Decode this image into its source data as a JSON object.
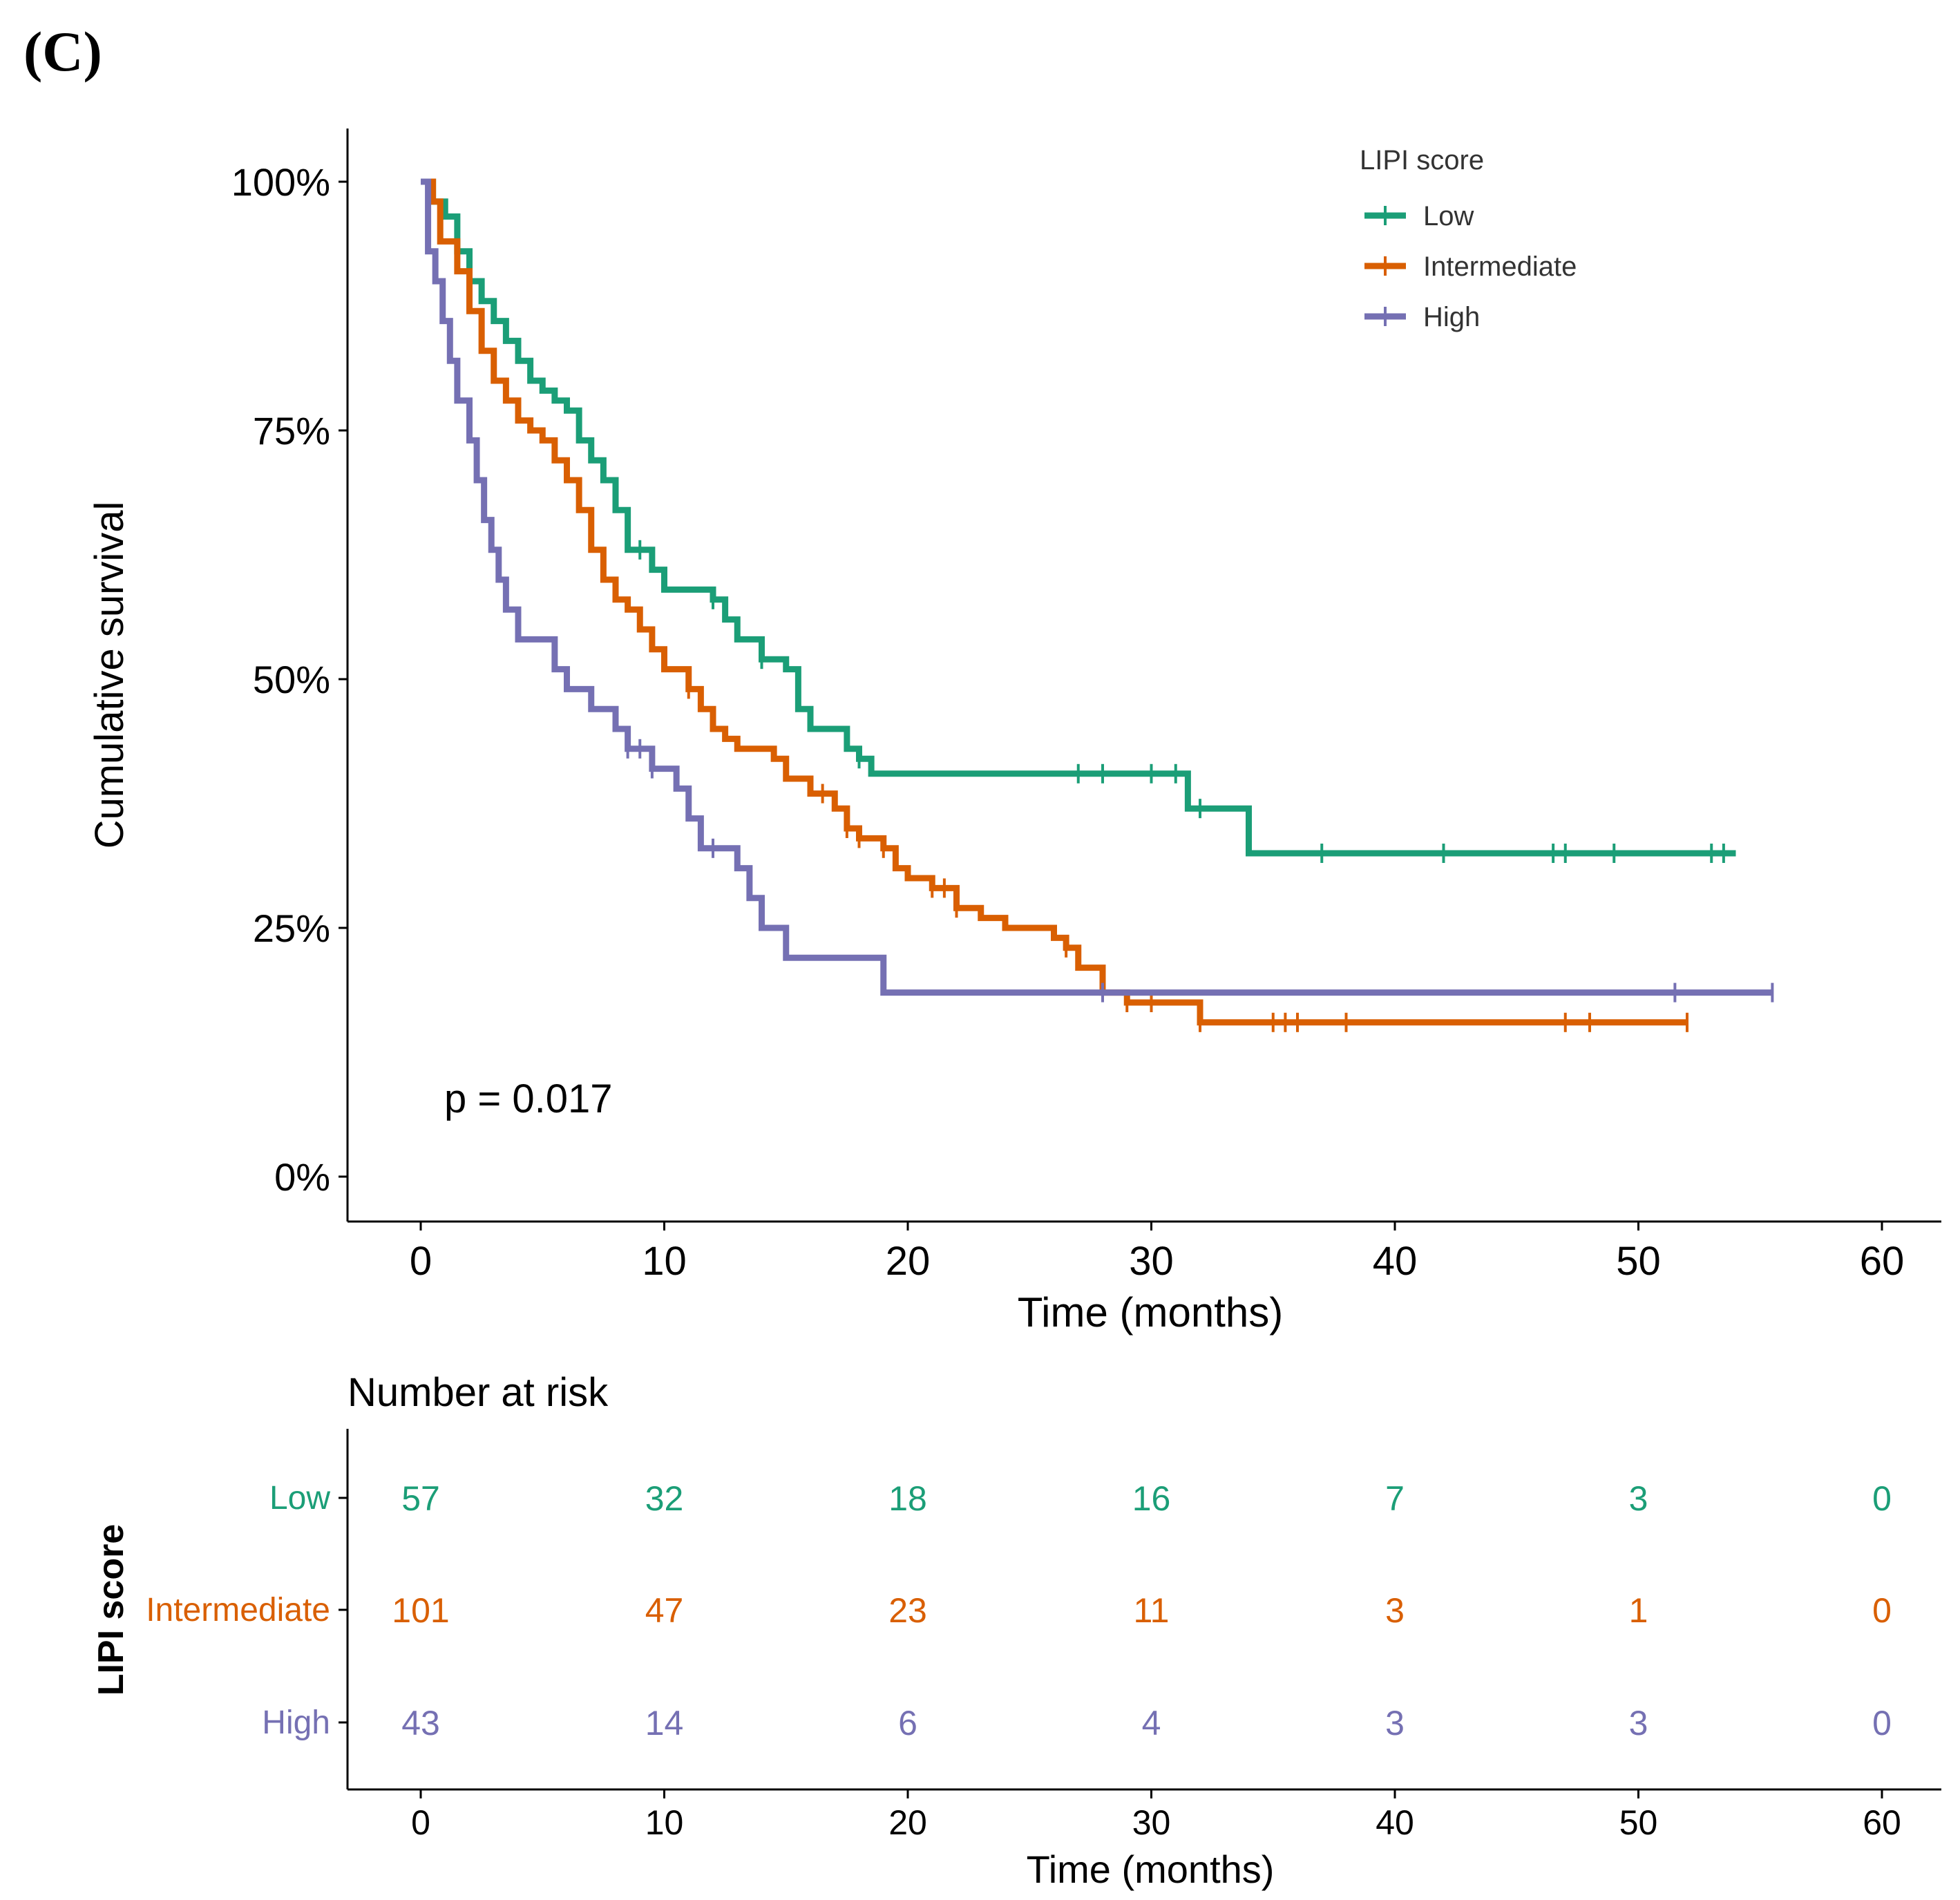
{
  "panel_label": "(C)",
  "chart_data": [
    {
      "type": "line",
      "subtype": "kaplan-meier-step",
      "title": "",
      "xlabel": "Time (months)",
      "ylabel": "Cumulative survival",
      "xlim": [
        -3,
        62
      ],
      "ylim": [
        -0.05,
        1.05
      ],
      "x_ticks": [
        0,
        10,
        20,
        30,
        40,
        50,
        60
      ],
      "y_ticks": [
        0,
        0.25,
        0.5,
        0.75,
        1.0
      ],
      "y_tick_labels": [
        "0%",
        "25%",
        "50%",
        "75%",
        "100%"
      ],
      "grid": false,
      "legend": {
        "title": "LIPI score",
        "placement": "top-right"
      },
      "annotation": "p = 0.017",
      "series": [
        {
          "name": "Low",
          "color": "#1b9e77",
          "points": [
            [
              0,
              1.0
            ],
            [
              0.5,
              0.98
            ],
            [
              1,
              0.965
            ],
            [
              1.5,
              0.93
            ],
            [
              2,
              0.9
            ],
            [
              2.5,
              0.88
            ],
            [
              3,
              0.86
            ],
            [
              3.5,
              0.84
            ],
            [
              4,
              0.82
            ],
            [
              4.5,
              0.8
            ],
            [
              5,
              0.79
            ],
            [
              5.5,
              0.78
            ],
            [
              6,
              0.77
            ],
            [
              6.5,
              0.74
            ],
            [
              7,
              0.72
            ],
            [
              7.5,
              0.7
            ],
            [
              8,
              0.67
            ],
            [
              8.5,
              0.63
            ],
            [
              9.5,
              0.61
            ],
            [
              10,
              0.59
            ],
            [
              12,
              0.58
            ],
            [
              12.5,
              0.56
            ],
            [
              13,
              0.54
            ],
            [
              14,
              0.52
            ],
            [
              15,
              0.51
            ],
            [
              15.5,
              0.47
            ],
            [
              16,
              0.45
            ],
            [
              17.5,
              0.43
            ],
            [
              18,
              0.42
            ],
            [
              18.5,
              0.405
            ],
            [
              31.5,
              0.37
            ],
            [
              33,
              0.37
            ],
            [
              34,
              0.325
            ],
            [
              54,
              0.325
            ]
          ],
          "censor_x": [
            9,
            12,
            14,
            18,
            27,
            28,
            30,
            31,
            32,
            37,
            42,
            46.5,
            47,
            49,
            53,
            53.5
          ]
        },
        {
          "name": "Intermediate",
          "color": "#d95f02",
          "points": [
            [
              0,
              1.0
            ],
            [
              0.5,
              0.98
            ],
            [
              0.8,
              0.94
            ],
            [
              1.5,
              0.91
            ],
            [
              2,
              0.87
            ],
            [
              2.5,
              0.83
            ],
            [
              3,
              0.8
            ],
            [
              3.5,
              0.78
            ],
            [
              4,
              0.76
            ],
            [
              4.5,
              0.75
            ],
            [
              5,
              0.74
            ],
            [
              5.5,
              0.72
            ],
            [
              6,
              0.7
            ],
            [
              6.5,
              0.67
            ],
            [
              7,
              0.63
            ],
            [
              7.5,
              0.6
            ],
            [
              8,
              0.58
            ],
            [
              8.5,
              0.57
            ],
            [
              9,
              0.55
            ],
            [
              9.5,
              0.53
            ],
            [
              10,
              0.51
            ],
            [
              11,
              0.49
            ],
            [
              11.5,
              0.47
            ],
            [
              12,
              0.45
            ],
            [
              12.5,
              0.44
            ],
            [
              13,
              0.43
            ],
            [
              14.5,
              0.42
            ],
            [
              15,
              0.4
            ],
            [
              16,
              0.385
            ],
            [
              17,
              0.37
            ],
            [
              17.5,
              0.35
            ],
            [
              18,
              0.34
            ],
            [
              19,
              0.33
            ],
            [
              19.5,
              0.31
            ],
            [
              20,
              0.3
            ],
            [
              21,
              0.29
            ],
            [
              22,
              0.27
            ],
            [
              23,
              0.26
            ],
            [
              24,
              0.25
            ],
            [
              26,
              0.24
            ],
            [
              26.5,
              0.23
            ],
            [
              27,
              0.21
            ],
            [
              28,
              0.185
            ],
            [
              29,
              0.175
            ],
            [
              32,
              0.155
            ],
            [
              52,
              0.155
            ]
          ],
          "censor_x": [
            11,
            16.5,
            17.5,
            18,
            19,
            21,
            21.5,
            22,
            26.5,
            29,
            30,
            32,
            35,
            35.5,
            36,
            38,
            47,
            48,
            52
          ]
        },
        {
          "name": "High",
          "color": "#7570b3",
          "points": [
            [
              0,
              1.0
            ],
            [
              0.3,
              0.93
            ],
            [
              0.6,
              0.9
            ],
            [
              0.9,
              0.86
            ],
            [
              1.2,
              0.82
            ],
            [
              1.5,
              0.78
            ],
            [
              2,
              0.74
            ],
            [
              2.3,
              0.7
            ],
            [
              2.6,
              0.66
            ],
            [
              2.9,
              0.63
            ],
            [
              3.2,
              0.6
            ],
            [
              3.5,
              0.57
            ],
            [
              4,
              0.54
            ],
            [
              5.5,
              0.51
            ],
            [
              6,
              0.49
            ],
            [
              7,
              0.47
            ],
            [
              8,
              0.45
            ],
            [
              8.5,
              0.43
            ],
            [
              9.5,
              0.41
            ],
            [
              10.5,
              0.39
            ],
            [
              11,
              0.36
            ],
            [
              11.5,
              0.33
            ],
            [
              13,
              0.31
            ],
            [
              13.5,
              0.28
            ],
            [
              14,
              0.25
            ],
            [
              15,
              0.22
            ],
            [
              19,
              0.185
            ],
            [
              55.5,
              0.185
            ]
          ],
          "censor_x": [
            8.5,
            9,
            9.5,
            12,
            28,
            51.5,
            55.5
          ]
        }
      ]
    },
    {
      "type": "table",
      "title": "Number at risk",
      "xlabel": "Time (months)",
      "ylabel": "LIPI score",
      "x_ticks": [
        0,
        10,
        20,
        30,
        40,
        50,
        60
      ],
      "xlim": [
        -3,
        62
      ],
      "rows": [
        {
          "name": "Low",
          "color": "#1b9e77",
          "values": [
            "57",
            "32",
            "18",
            "16",
            "7",
            "3",
            "0"
          ]
        },
        {
          "name": "Intermediate",
          "color": "#d95f02",
          "values": [
            "101",
            "47",
            "23",
            "11",
            "3",
            "1",
            "0"
          ]
        },
        {
          "name": "High",
          "color": "#7570b3",
          "values": [
            "43",
            "14",
            "6",
            "4",
            "3",
            "3",
            "0"
          ]
        }
      ]
    }
  ]
}
